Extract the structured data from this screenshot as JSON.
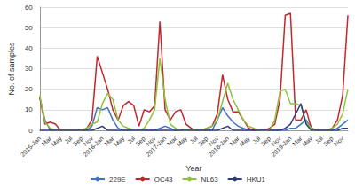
{
  "chart_data": {
    "type": "line",
    "x_label": "Year",
    "y_label": "No. of samples",
    "categories": [
      "2015-Jan",
      null,
      "Mar",
      null,
      "May",
      null,
      "Jul",
      null,
      "Sep",
      null,
      "Nov",
      null,
      "2016-Jan",
      null,
      "Mar",
      null,
      "May",
      null,
      "Jul",
      null,
      "Sep",
      null,
      "Nov",
      null,
      "2017-Jan",
      null,
      "Mar",
      null,
      "May",
      null,
      "Jul",
      null,
      "Sep",
      null,
      "Nov",
      null,
      "2018-Jan",
      null,
      "Mar",
      null,
      "May",
      null,
      "Jul",
      null,
      "Sep",
      null,
      "Nov",
      null,
      "2019-Jan",
      null,
      "Mar",
      null,
      "May",
      null,
      "Jul",
      null,
      "Sep",
      null,
      "Nov",
      null
    ],
    "series": [
      {
        "name": "229E",
        "color": "#4472c4",
        "values": [
          16,
          5,
          0,
          0,
          0,
          0,
          0,
          0,
          0,
          0,
          2,
          11,
          10,
          11,
          5,
          1,
          0,
          0,
          0,
          0,
          0,
          0,
          0,
          1,
          2,
          1,
          0,
          0,
          0,
          0,
          0,
          0,
          0,
          0,
          5,
          11,
          7,
          4,
          2,
          1,
          0,
          0,
          0,
          0,
          0,
          0,
          0,
          0,
          1,
          1,
          3,
          5,
          1,
          0,
          0,
          0,
          0,
          1,
          3,
          5
        ]
      },
      {
        "name": "OC43",
        "color": "#c0282d",
        "values": [
          16,
          3,
          4,
          3,
          0,
          0,
          0,
          0,
          0,
          1,
          5,
          36,
          28,
          20,
          10,
          5,
          12,
          14,
          12,
          2,
          10,
          9,
          12,
          53,
          10,
          5,
          9,
          10,
          3,
          1,
          0,
          0,
          1,
          2,
          8,
          27,
          15,
          9,
          9,
          5,
          1,
          0,
          0,
          0,
          1,
          3,
          15,
          56,
          57,
          5,
          5,
          10,
          1,
          0,
          0,
          0,
          1,
          5,
          17,
          56
        ]
      },
      {
        "name": "NL63",
        "color": "#8cc43c",
        "values": [
          17,
          4,
          1,
          0,
          0,
          0,
          0,
          0,
          0,
          1,
          3,
          4,
          13,
          18,
          15,
          5,
          2,
          1,
          0,
          0,
          1,
          5,
          10,
          35,
          15,
          3,
          1,
          0,
          0,
          0,
          0,
          0,
          1,
          2,
          5,
          14,
          23,
          15,
          10,
          5,
          2,
          1,
          0,
          0,
          0,
          5,
          19,
          20,
          13,
          13,
          12,
          4,
          1,
          0,
          0,
          0,
          1,
          3,
          8,
          20
        ]
      },
      {
        "name": "HKU1",
        "color": "#2e3c7e",
        "values": [
          0,
          0,
          0,
          0,
          0,
          0,
          0,
          0,
          0,
          0,
          0,
          1,
          2,
          0,
          0,
          0,
          0,
          0,
          0,
          0,
          0,
          0,
          0,
          0,
          0,
          0,
          0,
          0,
          0,
          0,
          0,
          0,
          0,
          0,
          0,
          1,
          2,
          0,
          0,
          0,
          0,
          0,
          0,
          0,
          0,
          0,
          0,
          1,
          3,
          8,
          13,
          3,
          0,
          0,
          0,
          0,
          0,
          0,
          1,
          1
        ]
      }
    ],
    "ylim": [
      0,
      60
    ],
    "yticks": [
      0,
      10,
      20,
      30,
      40,
      50,
      60
    ],
    "grid": true,
    "legend": "bottom"
  }
}
